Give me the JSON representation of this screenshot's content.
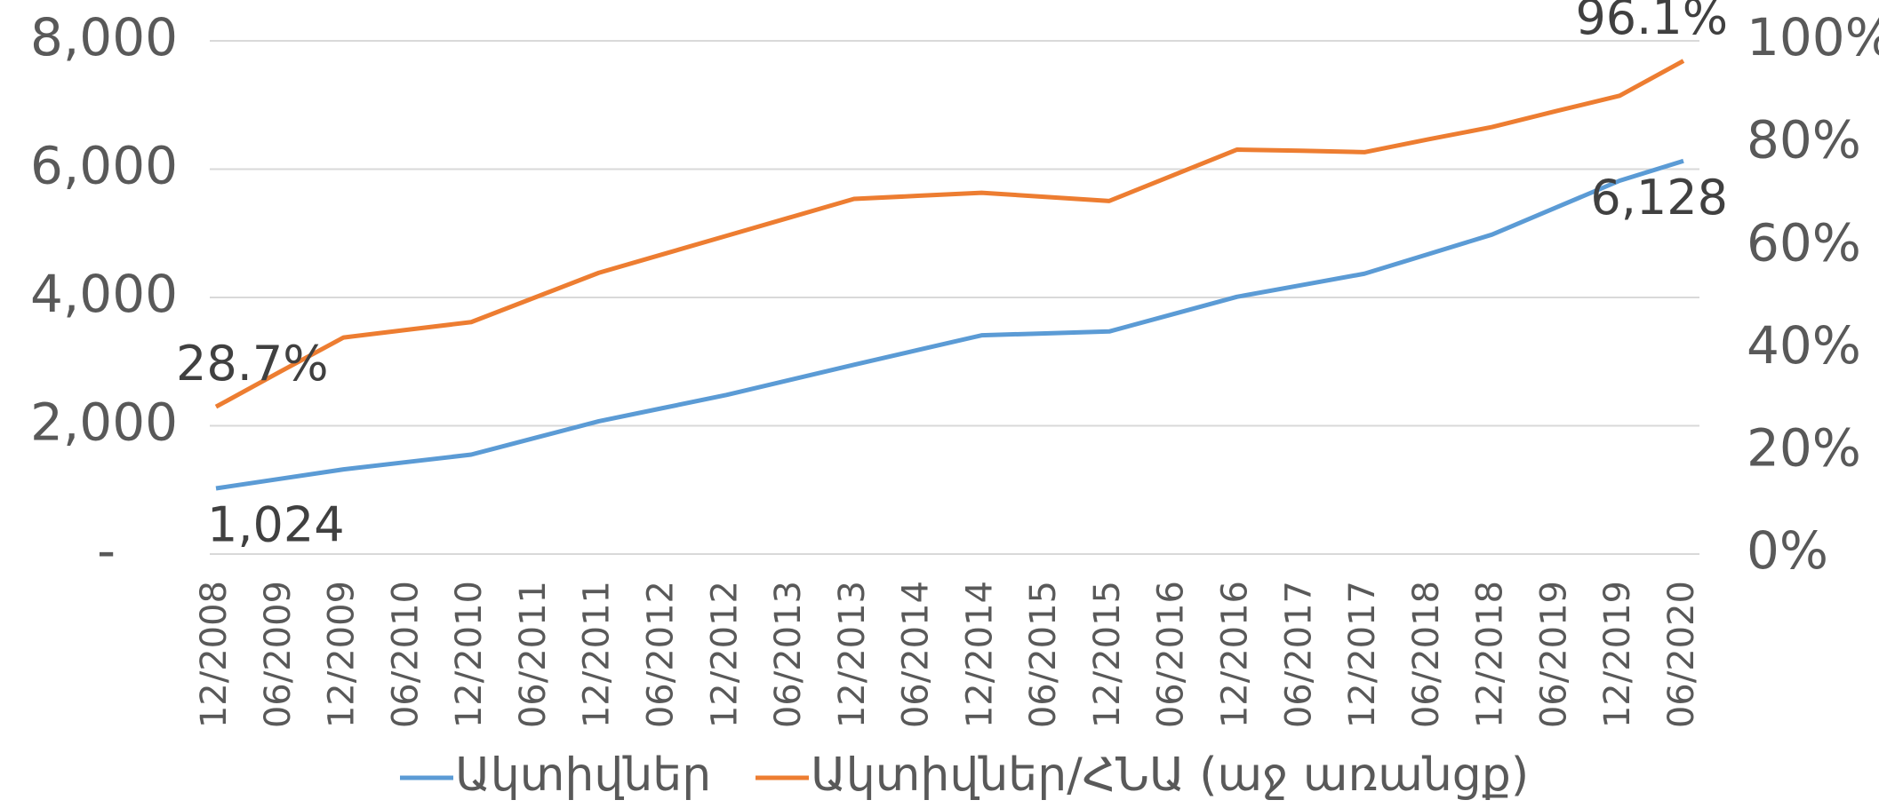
{
  "chart_data": {
    "type": "line",
    "categories": [
      "12/2008",
      "06/2009",
      "12/2009",
      "06/2010",
      "12/2010",
      "06/2011",
      "12/2011",
      "06/2012",
      "12/2012",
      "06/2013",
      "12/2013",
      "06/2014",
      "12/2014",
      "06/2015",
      "12/2015",
      "06/2016",
      "12/2016",
      "06/2017",
      "12/2017",
      "06/2018",
      "12/2018",
      "06/2019",
      "12/2019",
      "06/2020"
    ],
    "series": [
      {
        "name": "Ակտիվներ",
        "color": "#5b9bd5",
        "axis": "y",
        "values": [
          1024,
          1172,
          1320,
          1435,
          1550,
          1810,
          2070,
          2275,
          2480,
          2715,
          2950,
          3180,
          3410,
          3440,
          3470,
          3740,
          4010,
          4190,
          4370,
          4675,
          4980,
          5400,
          5820,
          6128
        ],
        "value_labels": [
          "1,024",
          null,
          null,
          null,
          null,
          null,
          null,
          null,
          null,
          null,
          null,
          null,
          null,
          null,
          null,
          null,
          null,
          null,
          null,
          null,
          null,
          null,
          null,
          "6,128"
        ]
      },
      {
        "name": "Ակտիվներ/ՀՆԱ (աջ առանցք)",
        "color": "#ed7d31",
        "axis": "y2",
        "values": [
          28.7,
          35.5,
          42.2,
          43.7,
          45.2,
          50.0,
          54.8,
          58.4,
          62.0,
          65.6,
          69.2,
          69.8,
          70.4,
          69.6,
          68.8,
          73.8,
          78.8,
          78.6,
          78.3,
          80.8,
          83.2,
          86.3,
          89.3,
          96.1
        ],
        "value_labels": [
          "28.7%",
          null,
          null,
          null,
          null,
          null,
          null,
          null,
          null,
          null,
          null,
          null,
          null,
          null,
          null,
          null,
          null,
          null,
          null,
          null,
          null,
          null,
          null,
          "96.1%"
        ]
      }
    ],
    "ylim": [
      0,
      8000
    ],
    "yticks": [
      {
        "value": 0,
        "label": "-"
      },
      {
        "value": 2000,
        "label": "2,000"
      },
      {
        "value": 4000,
        "label": "4,000"
      },
      {
        "value": 6000,
        "label": "6,000"
      },
      {
        "value": 8000,
        "label": "8,000"
      }
    ],
    "y2lim": [
      0,
      100
    ],
    "y2ticks": [
      {
        "value": 0,
        "label": "0%"
      },
      {
        "value": 20,
        "label": "20%"
      },
      {
        "value": 40,
        "label": "40%"
      },
      {
        "value": 60,
        "label": "60%"
      },
      {
        "value": 80,
        "label": "80%"
      },
      {
        "value": 100,
        "label": "100%"
      }
    ],
    "grid": true,
    "legend": "bottom"
  }
}
